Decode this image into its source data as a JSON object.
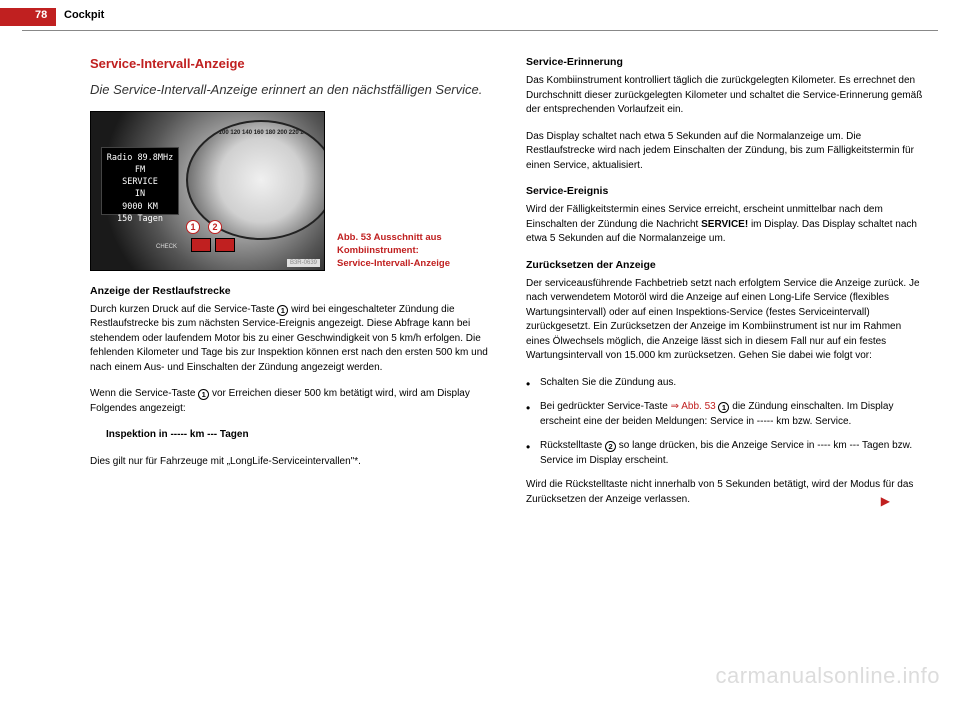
{
  "header": {
    "page_number": "78",
    "chapter": "Cockpit"
  },
  "left": {
    "title": "Service-Intervall-Anzeige",
    "lead": "Die Service-Intervall-Anzeige erinnert an den nächstfälligen Service.",
    "figure": {
      "radio": {
        "line1": "Radio 89.8MHz",
        "line2": "FM",
        "line3": "SERVICE",
        "line4": "IN",
        "line5": "9000 KM",
        "line6": "150 Tagen"
      },
      "gauge_ticks": "60 80 100 120 140 160 180 200 220 240",
      "check_label": "CHECK",
      "fig_id": "B3R-0639",
      "callouts": {
        "c1": "1",
        "c2": "2"
      },
      "caption": "Abb. 53   Ausschnitt aus Kombiinstrument: Service-Intervall-Anzeige"
    },
    "h1": "Anzeige der Restlaufstrecke",
    "p1a": "Durch kurzen Druck auf die Service-Taste ",
    "p1_marker": "1",
    "p1b": " wird bei eingeschalteter Zündung die Restlaufstrecke bis zum nächsten Service-Ereignis angezeigt. Diese Abfrage kann bei stehendem oder laufendem Motor bis zu einer Geschwindigkeit von 5 km/h erfolgen. Die fehlenden Kilometer und Tage bis zur Inspektion können erst nach den ersten 500 km und nach einem Aus- und Einschalten der Zündung angezeigt werden.",
    "p2a": "Wenn die Service-Taste ",
    "p2_marker": "1",
    "p2b": " vor Erreichen dieser 500 km betätigt wird, wird am Display Folgendes angezeigt:",
    "display_text": "Inspektion in ----- km --- Tagen",
    "p3": "Dies gilt nur für Fahrzeuge mit „LongLife-Serviceintervallen\"*."
  },
  "right": {
    "h1": "Service-Erinnerung",
    "p1": "Das Kombiinstrument kontrolliert täglich die zurückgelegten Kilometer. Es errechnet den Durchschnitt dieser zurückgelegten Kilometer und schaltet die Service-Erinnerung gemäß der entsprechenden Vorlaufzeit ein.",
    "p2": "Das Display schaltet nach etwa 5 Sekunden auf die Normalanzeige um. Die Restlaufstrecke wird nach jedem Einschalten der Zündung, bis zum Fälligkeitstermin für einen Service, aktualisiert.",
    "h2": "Service-Ereignis",
    "p3a": "Wird der Fälligkeitstermin eines Service erreicht, erscheint unmittelbar nach dem Einschalten der Zündung die Nachricht ",
    "p3_bold": "SERVICE!",
    "p3b": " im Display. Das Display schaltet nach etwa 5 Sekunden auf die Normalanzeige um.",
    "h3": "Zurücksetzen der Anzeige",
    "p4": "Der serviceausführende Fachbetrieb setzt nach erfolgtem Service die Anzeige zurück. Je nach verwendetem Motoröl wird die Anzeige auf einen Long-Life Service (flexibles Wartungsintervall) oder auf einen Inspektions-Service (festes Serviceintervall) zurückgesetzt. Ein Zurücksetzen der Anzeige im Kombiinstrument ist nur im Rahmen eines Ölwechsels möglich, die Anzeige lässt sich in diesem Fall nur auf ein festes Wartungsintervall von 15.000 km zurücksetzen. Gehen Sie dabei wie folgt vor:",
    "b1": "Schalten Sie die Zündung aus.",
    "b2a": "Bei gedrückter Service-Taste ",
    "b2_link": "⇒ Abb. 53 ",
    "b2_marker": "1",
    "b2b": " die Zündung einschalten. Im Display erscheint eine der beiden Meldungen: ",
    "b2_bold1": "Service in ----- km",
    "b2_mid": " bzw. ",
    "b2_bold2": "Service",
    "b2c": ".",
    "b3a": "Rückstelltaste ",
    "b3_marker": "2",
    "b3b": " so lange drücken, bis die Anzeige ",
    "b3_bold1": "Service in ---- km --- Tagen",
    "b3_mid": " bzw. ",
    "b3_bold2": "Service",
    "b3c": " im Display erscheint.",
    "p5": "Wird die Rückstelltaste nicht innerhalb von 5 Sekunden betätigt, wird der Modus für das Zurücksetzen der Anzeige verlassen.",
    "arrow": "▶"
  },
  "watermark": "carmanualsonline.info"
}
